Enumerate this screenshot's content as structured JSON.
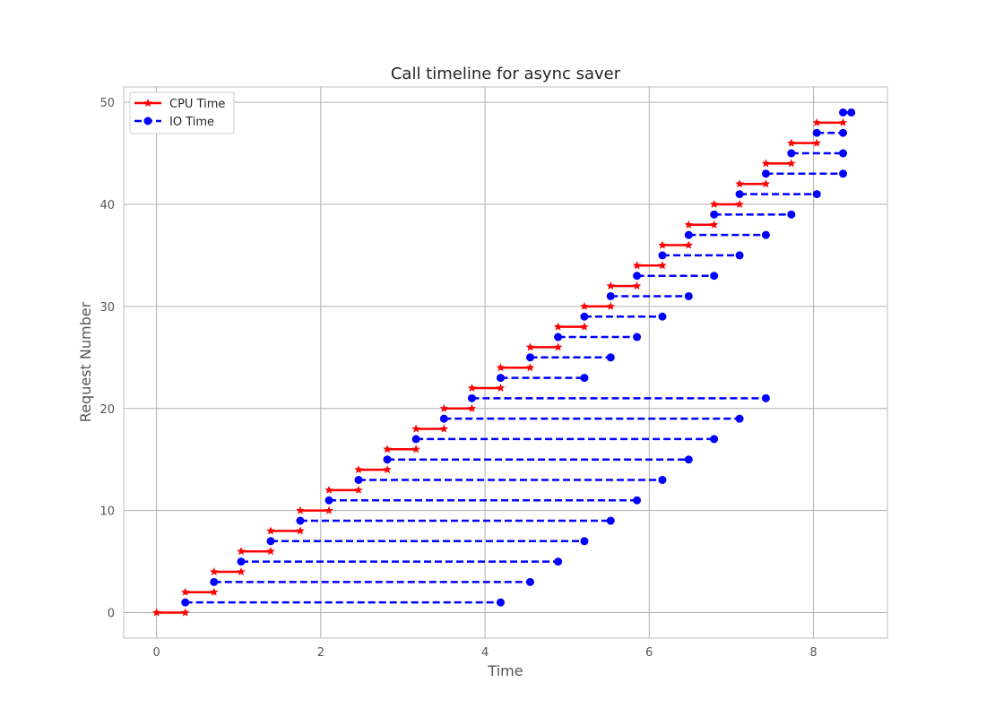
{
  "chart_data": {
    "type": "line",
    "title": "Call timeline for async saver",
    "xlabel": "Time",
    "ylabel": "Request Number",
    "xlim": [
      -0.4,
      8.9
    ],
    "ylim": [
      -2.5,
      51.5
    ],
    "xticks": [
      0,
      2,
      4,
      6,
      8
    ],
    "yticks": [
      0,
      10,
      20,
      30,
      40,
      50
    ],
    "grid": true,
    "legend_position": "top-left",
    "colors": {
      "cpu": "#ff0000",
      "io": "#0000ff",
      "grid": "#b0b0b0",
      "frame": "#bfbfbf"
    },
    "series": [
      {
        "name": "CPU Time",
        "style": "solid",
        "marker": "star",
        "segments": [
          {
            "y": 0,
            "x": [
              0.0,
              0.35
            ]
          },
          {
            "y": 2,
            "x": [
              0.35,
              0.7
            ]
          },
          {
            "y": 4,
            "x": [
              0.7,
              1.03
            ]
          },
          {
            "y": 6,
            "x": [
              1.03,
              1.39
            ]
          },
          {
            "y": 8,
            "x": [
              1.39,
              1.75
            ]
          },
          {
            "y": 10,
            "x": [
              1.75,
              2.1
            ]
          },
          {
            "y": 12,
            "x": [
              2.1,
              2.46
            ]
          },
          {
            "y": 14,
            "x": [
              2.46,
              2.81
            ]
          },
          {
            "y": 16,
            "x": [
              2.81,
              3.16
            ]
          },
          {
            "y": 18,
            "x": [
              3.16,
              3.5
            ]
          },
          {
            "y": 20,
            "x": [
              3.5,
              3.84
            ]
          },
          {
            "y": 22,
            "x": [
              3.84,
              4.19
            ]
          },
          {
            "y": 24,
            "x": [
              4.19,
              4.55
            ]
          },
          {
            "y": 26,
            "x": [
              4.55,
              4.89
            ]
          },
          {
            "y": 28,
            "x": [
              4.89,
              5.21
            ]
          },
          {
            "y": 30,
            "x": [
              5.21,
              5.53
            ]
          },
          {
            "y": 32,
            "x": [
              5.53,
              5.85
            ]
          },
          {
            "y": 34,
            "x": [
              5.85,
              6.16
            ]
          },
          {
            "y": 36,
            "x": [
              6.16,
              6.48
            ]
          },
          {
            "y": 38,
            "x": [
              6.48,
              6.79
            ]
          },
          {
            "y": 40,
            "x": [
              6.79,
              7.1
            ]
          },
          {
            "y": 42,
            "x": [
              7.1,
              7.42
            ]
          },
          {
            "y": 44,
            "x": [
              7.42,
              7.73
            ]
          },
          {
            "y": 46,
            "x": [
              7.73,
              8.04
            ]
          },
          {
            "y": 48,
            "x": [
              8.04,
              8.36
            ]
          }
        ]
      },
      {
        "name": "IO Time",
        "style": "dashed",
        "marker": "circle",
        "segments": [
          {
            "y": 1,
            "x": [
              0.35,
              4.19
            ]
          },
          {
            "y": 3,
            "x": [
              0.7,
              4.55
            ]
          },
          {
            "y": 5,
            "x": [
              1.03,
              4.89
            ]
          },
          {
            "y": 7,
            "x": [
              1.39,
              5.21
            ]
          },
          {
            "y": 9,
            "x": [
              1.75,
              5.53
            ]
          },
          {
            "y": 11,
            "x": [
              2.1,
              5.85
            ]
          },
          {
            "y": 13,
            "x": [
              2.46,
              6.16
            ]
          },
          {
            "y": 15,
            "x": [
              2.81,
              6.48
            ]
          },
          {
            "y": 17,
            "x": [
              3.16,
              6.79
            ]
          },
          {
            "y": 19,
            "x": [
              3.5,
              7.1
            ]
          },
          {
            "y": 21,
            "x": [
              3.84,
              7.42
            ]
          },
          {
            "y": 23,
            "x": [
              4.19,
              5.21
            ]
          },
          {
            "y": 25,
            "x": [
              4.55,
              5.53
            ]
          },
          {
            "y": 27,
            "x": [
              4.89,
              5.85
            ]
          },
          {
            "y": 29,
            "x": [
              5.21,
              6.16
            ]
          },
          {
            "y": 31,
            "x": [
              5.53,
              6.48
            ]
          },
          {
            "y": 33,
            "x": [
              5.85,
              6.79
            ]
          },
          {
            "y": 35,
            "x": [
              6.16,
              7.1
            ]
          },
          {
            "y": 37,
            "x": [
              6.48,
              7.42
            ]
          },
          {
            "y": 39,
            "x": [
              6.79,
              7.73
            ]
          },
          {
            "y": 41,
            "x": [
              7.1,
              8.04
            ]
          },
          {
            "y": 43,
            "x": [
              7.42,
              8.36
            ]
          },
          {
            "y": 45,
            "x": [
              7.73,
              8.36
            ]
          },
          {
            "y": 47,
            "x": [
              8.04,
              8.36
            ]
          },
          {
            "y": 49,
            "x": [
              8.36,
              8.46
            ]
          }
        ]
      }
    ]
  }
}
